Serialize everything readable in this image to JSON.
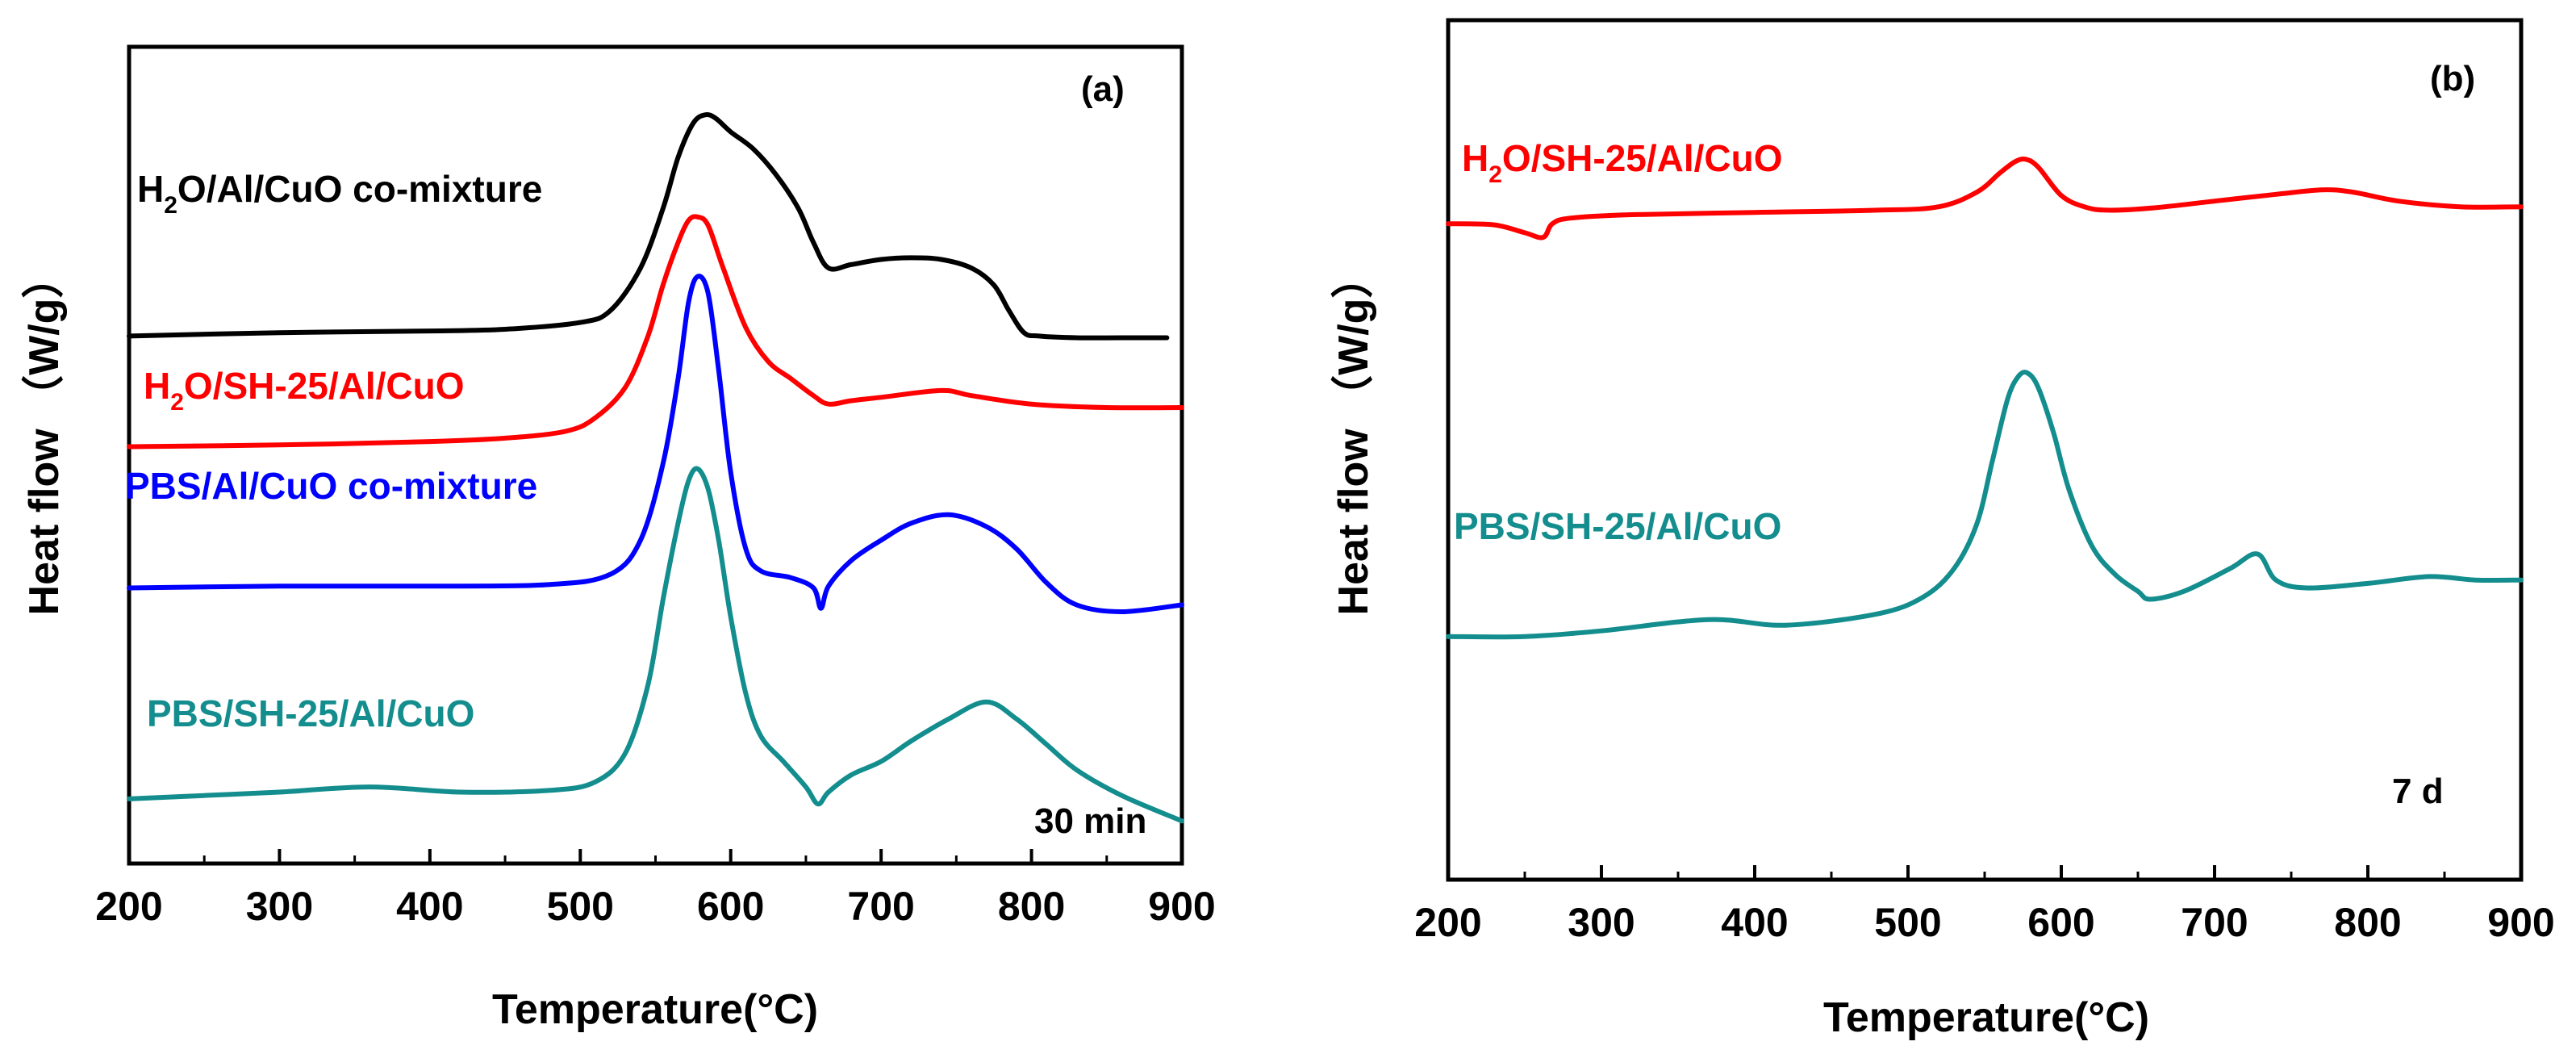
{
  "chart_data": [
    {
      "type": "line",
      "panel_label": "(a)",
      "annotation": "30 min",
      "xlabel": "Temperature(",
      "xlabel_unit": "°C)",
      "ylabel": "Heat flow （W/g）",
      "xlim": [
        200,
        900
      ],
      "xticks": [
        "200",
        "300",
        "400",
        "500",
        "600",
        "700",
        "800",
        "900"
      ],
      "grid": false,
      "series": [
        {
          "name_parts": [
            "H",
            "2",
            "O/Al/CuO co-mixture"
          ],
          "color": "#000000",
          "x": [
            200,
            300,
            400,
            450,
            500,
            520,
            540,
            555,
            565,
            575,
            583,
            590,
            600,
            615,
            630,
            645,
            655,
            665,
            680,
            700,
            720,
            740,
            760,
            775,
            785,
            795,
            805,
            830,
            860,
            890
          ],
          "y": [
            2.2,
            2.22,
            2.23,
            2.24,
            2.28,
            2.35,
            2.6,
            2.95,
            3.25,
            3.45,
            3.5,
            3.48,
            3.4,
            3.3,
            3.15,
            2.95,
            2.75,
            2.6,
            2.62,
            2.65,
            2.66,
            2.65,
            2.6,
            2.5,
            2.35,
            2.22,
            2.2,
            2.19,
            2.19,
            2.19
          ]
        },
        {
          "name_parts": [
            "H",
            "2",
            "O/SH-25/Al/CuO"
          ],
          "color": "#ff0000",
          "x": [
            200,
            300,
            400,
            450,
            490,
            510,
            530,
            545,
            555,
            565,
            572,
            578,
            585,
            595,
            610,
            625,
            640,
            655,
            665,
            680,
            700,
            740,
            760,
            800,
            850,
            900
          ],
          "y": [
            1.55,
            1.56,
            1.58,
            1.6,
            1.64,
            1.72,
            1.9,
            2.2,
            2.5,
            2.75,
            2.88,
            2.9,
            2.85,
            2.6,
            2.25,
            2.05,
            1.95,
            1.85,
            1.8,
            1.82,
            1.84,
            1.88,
            1.85,
            1.8,
            1.78,
            1.78
          ]
        },
        {
          "name_parts": [
            "PBS/Al/CuO co-mixture"
          ],
          "color": "#0000ff",
          "x": [
            200,
            300,
            400,
            480,
            520,
            540,
            555,
            565,
            572,
            578,
            585,
            592,
            600,
            610,
            620,
            640,
            655,
            660,
            665,
            680,
            700,
            720,
            745,
            770,
            790,
            810,
            830,
            860,
            900
          ],
          "y": [
            0.72,
            0.73,
            0.73,
            0.74,
            0.8,
            1.0,
            1.45,
            1.95,
            2.4,
            2.55,
            2.45,
            2.0,
            1.4,
            0.95,
            0.82,
            0.78,
            0.72,
            0.6,
            0.73,
            0.88,
            1.0,
            1.1,
            1.15,
            1.08,
            0.95,
            0.75,
            0.62,
            0.58,
            0.62
          ]
        },
        {
          "name_parts": [
            "PBS/SH-25/Al/CuO"
          ],
          "color": "#138d8d",
          "x": [
            200,
            250,
            300,
            360,
            420,
            480,
            510,
            530,
            545,
            555,
            565,
            572,
            578,
            585,
            592,
            600,
            610,
            620,
            635,
            650,
            658,
            665,
            680,
            700,
            720,
            745,
            770,
            790,
            810,
            830,
            860,
            900
          ],
          "y": [
            -0.52,
            -0.5,
            -0.48,
            -0.45,
            -0.48,
            -0.47,
            -0.42,
            -0.25,
            0.15,
            0.65,
            1.1,
            1.35,
            1.42,
            1.3,
            1.0,
            0.55,
            0.1,
            -0.15,
            -0.3,
            -0.45,
            -0.55,
            -0.48,
            -0.38,
            -0.3,
            -0.18,
            -0.05,
            0.05,
            -0.05,
            -0.2,
            -0.35,
            -0.5,
            -0.65
          ]
        }
      ]
    },
    {
      "type": "line",
      "panel_label": "(b)",
      "annotation": "7 d",
      "xlabel": "Temperature(",
      "xlabel_unit": "°C)",
      "ylabel": "Heat flow （W/g）",
      "xlim": [
        200,
        900
      ],
      "xticks": [
        "200",
        "300",
        "400",
        "500",
        "600",
        "700",
        "800",
        "900"
      ],
      "grid": false,
      "series": [
        {
          "name_parts": [
            "H",
            "2",
            "O/SH-25/Al/CuO"
          ],
          "color": "#ff0000",
          "x": [
            200,
            230,
            250,
            262,
            268,
            280,
            320,
            400,
            480,
            520,
            545,
            560,
            570,
            577,
            585,
            600,
            615,
            630,
            660,
            700,
            740,
            770,
            790,
            820,
            860,
            900
          ],
          "y": [
            2.4,
            2.39,
            2.32,
            2.28,
            2.4,
            2.45,
            2.48,
            2.5,
            2.52,
            2.55,
            2.68,
            2.85,
            2.95,
            2.97,
            2.9,
            2.65,
            2.55,
            2.52,
            2.54,
            2.6,
            2.66,
            2.7,
            2.68,
            2.6,
            2.55,
            2.55
          ]
        },
        {
          "name_parts": [
            "PBS/SH-25/Al/CuO"
          ],
          "color": "#138d8d",
          "x": [
            200,
            250,
            300,
            370,
            420,
            480,
            510,
            530,
            545,
            555,
            565,
            572,
            578,
            585,
            595,
            605,
            620,
            635,
            650,
            658,
            680,
            710,
            728,
            740,
            760,
            800,
            840,
            870,
            900
          ],
          "y": [
            -1.25,
            -1.25,
            -1.2,
            -1.1,
            -1.15,
            -1.05,
            -0.9,
            -0.65,
            -0.25,
            0.3,
            0.85,
            1.05,
            1.08,
            0.95,
            0.55,
            0.05,
            -0.45,
            -0.7,
            -0.85,
            -0.92,
            -0.85,
            -0.65,
            -0.52,
            -0.75,
            -0.82,
            -0.78,
            -0.72,
            -0.75,
            -0.75
          ]
        }
      ]
    }
  ]
}
